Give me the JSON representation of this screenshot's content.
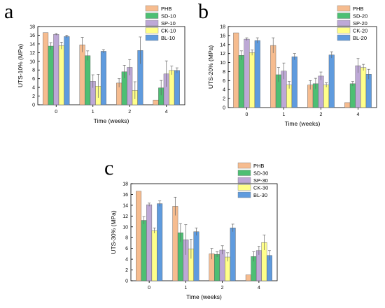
{
  "colors": {
    "PHB": "#f6bc8f",
    "SD": "#4dbf73",
    "SP": "#bda8d6",
    "CK": "#ffff8a",
    "BL": "#5f9bde"
  },
  "chart_data": [
    {
      "type": "bar",
      "panel_letter": "a",
      "categories": [
        "0",
        "1",
        "2",
        "4"
      ],
      "xlabel": "Time (weeks)",
      "ylabel": "UTS-10% (MPa)",
      "ylim": [
        0,
        18
      ],
      "yticks": [
        "0",
        "2",
        "4",
        "6",
        "8",
        "10",
        "12",
        "14",
        "16",
        "18"
      ],
      "legend_position": "top-right",
      "series": [
        {
          "name": "PHB",
          "values": [
            16.6,
            13.8,
            5.0,
            1.1
          ],
          "errors": [
            0.0,
            1.7,
            1.0,
            0.0
          ]
        },
        {
          "name": "SD-10",
          "values": [
            13.5,
            11.3,
            7.6,
            3.9
          ],
          "errors": [
            0.8,
            1.1,
            1.5,
            1.7
          ]
        },
        {
          "name": "SP-10",
          "values": [
            16.2,
            5.4,
            8.6,
            7.1
          ],
          "errors": [
            0.2,
            1.5,
            1.8,
            3.0
          ]
        },
        {
          "name": "CK-10",
          "values": [
            13.6,
            4.3,
            3.3,
            7.9
          ],
          "errors": [
            0.8,
            2.7,
            2.0,
            1.0
          ]
        },
        {
          "name": "BL-10",
          "values": [
            15.7,
            12.3,
            12.5,
            7.9
          ],
          "errors": [
            0.3,
            0.4,
            3.1,
            0.6
          ]
        }
      ]
    },
    {
      "type": "bar",
      "panel_letter": "b",
      "categories": [
        "0",
        "1",
        "2",
        "4"
      ],
      "xlabel": "Time (weeks)",
      "ylabel": "UTS-20% (MPa)",
      "ylim": [
        0,
        18
      ],
      "yticks": [
        "0",
        "2",
        "4",
        "6",
        "8",
        "10",
        "12",
        "14",
        "16",
        "18"
      ],
      "legend_position": "top-right",
      "series": [
        {
          "name": "PHB",
          "values": [
            16.6,
            13.8,
            5.0,
            1.1
          ],
          "errors": [
            0.0,
            1.7,
            1.0,
            0.0
          ]
        },
        {
          "name": "SD-20",
          "values": [
            11.6,
            7.3,
            5.3,
            5.3
          ],
          "errors": [
            1.0,
            1.6,
            1.2,
            0.5
          ]
        },
        {
          "name": "SP-20",
          "values": [
            15.2,
            8.1,
            7.0,
            9.3
          ],
          "errors": [
            0.3,
            1.8,
            0.9,
            1.6
          ]
        },
        {
          "name": "CK-20",
          "values": [
            12.2,
            5.0,
            5.0,
            8.9
          ],
          "errors": [
            0.6,
            0.8,
            0.5,
            0.7
          ]
        },
        {
          "name": "BL-20",
          "values": [
            14.9,
            11.3,
            11.7,
            7.4
          ],
          "errors": [
            0.6,
            0.7,
            0.7,
            1.1
          ]
        }
      ]
    },
    {
      "type": "bar",
      "panel_letter": "c",
      "categories": [
        "0",
        "1",
        "2",
        "4"
      ],
      "xlabel": "Time (weeks)",
      "ylabel": "UTS-30% (MPa)",
      "ylim": [
        0,
        18
      ],
      "yticks": [
        "0",
        "2",
        "4",
        "6",
        "8",
        "10",
        "12",
        "14",
        "16",
        "18"
      ],
      "legend_position": "top-right",
      "series": [
        {
          "name": "PHB",
          "values": [
            16.6,
            13.8,
            5.0,
            1.1
          ],
          "errors": [
            0.0,
            1.7,
            1.0,
            0.0
          ]
        },
        {
          "name": "SD-30",
          "values": [
            11.2,
            8.9,
            4.9,
            4.5
          ],
          "errors": [
            0.7,
            1.7,
            0.5,
            0.9
          ]
        },
        {
          "name": "SP-30",
          "values": [
            14.1,
            7.6,
            5.7,
            5.6
          ],
          "errors": [
            0.3,
            2.8,
            0.8,
            0.8
          ]
        },
        {
          "name": "CK-30",
          "values": [
            9.3,
            5.9,
            4.4,
            7.1
          ],
          "errors": [
            0.5,
            1.8,
            0.8,
            1.4
          ]
        },
        {
          "name": "BL-30",
          "values": [
            14.3,
            9.1,
            9.8,
            4.7
          ],
          "errors": [
            0.5,
            0.7,
            0.7,
            0.9
          ]
        }
      ]
    }
  ]
}
